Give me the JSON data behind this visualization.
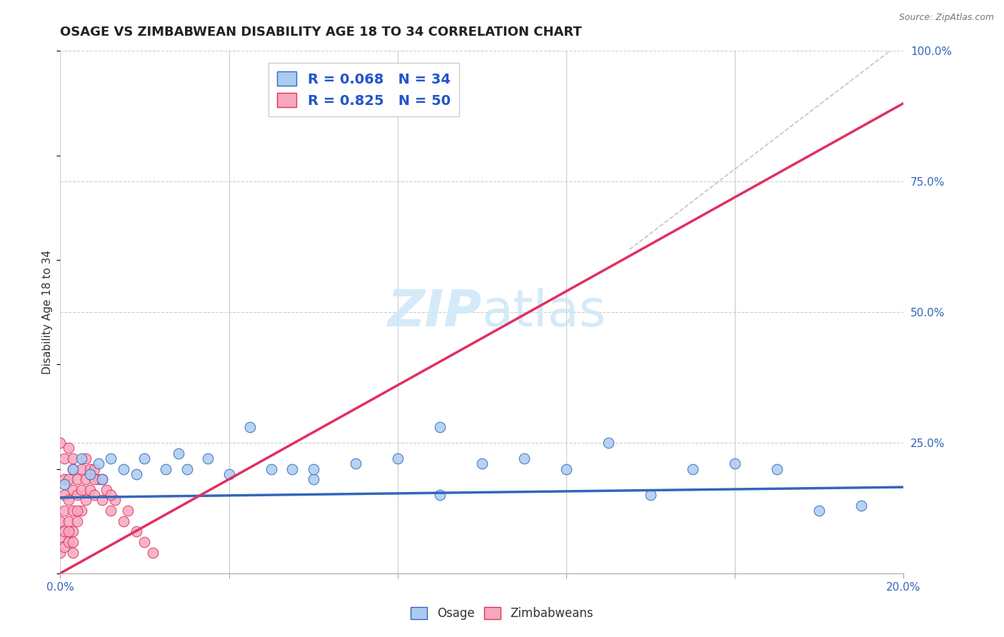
{
  "title": "OSAGE VS ZIMBABWEAN DISABILITY AGE 18 TO 34 CORRELATION CHART",
  "source_text": "Source: ZipAtlas.com",
  "ylabel": "Disability Age 18 to 34",
  "osage_R": 0.068,
  "osage_N": 34,
  "zimbabwean_R": 0.825,
  "zimbabwean_N": 50,
  "xlim": [
    0.0,
    0.2
  ],
  "ylim": [
    0.0,
    1.0
  ],
  "x_ticks": [
    0.0,
    0.04,
    0.08,
    0.12,
    0.16,
    0.2
  ],
  "x_tick_labels": [
    "0.0%",
    "",
    "",
    "",
    "",
    "20.0%"
  ],
  "y_ticks": [
    0.0,
    0.25,
    0.5,
    0.75,
    1.0
  ],
  "y_tick_labels": [
    "",
    "25.0%",
    "50.0%",
    "75.0%",
    "100.0%"
  ],
  "osage_color": "#aaccf0",
  "zimbabwean_color": "#f5a8bc",
  "osage_line_color": "#3366bb",
  "zimbabwean_line_color": "#e03060",
  "background_color": "#ffffff",
  "grid_color": "#cccccc",
  "watermark_color": "#d0e8f8",
  "title_fontsize": 13,
  "axis_label_fontsize": 11,
  "tick_fontsize": 11,
  "legend_fontsize": 14,
  "osage_line_x": [
    0.0,
    0.2
  ],
  "osage_line_y": [
    0.145,
    0.165
  ],
  "zimb_line_x": [
    0.0,
    0.2
  ],
  "zimb_line_y": [
    0.0,
    0.9
  ],
  "osage_x": [
    0.001,
    0.003,
    0.005,
    0.007,
    0.009,
    0.01,
    0.012,
    0.015,
    0.018,
    0.02,
    0.025,
    0.028,
    0.03,
    0.035,
    0.04,
    0.045,
    0.05,
    0.055,
    0.06,
    0.07,
    0.08,
    0.09,
    0.1,
    0.11,
    0.12,
    0.13,
    0.14,
    0.15,
    0.16,
    0.17,
    0.06,
    0.09,
    0.18,
    0.19
  ],
  "osage_y": [
    0.17,
    0.2,
    0.22,
    0.19,
    0.21,
    0.18,
    0.22,
    0.2,
    0.19,
    0.22,
    0.2,
    0.23,
    0.2,
    0.22,
    0.19,
    0.28,
    0.2,
    0.2,
    0.18,
    0.21,
    0.22,
    0.15,
    0.21,
    0.22,
    0.2,
    0.25,
    0.15,
    0.2,
    0.21,
    0.2,
    0.2,
    0.28,
    0.12,
    0.13
  ],
  "zimb_x": [
    0.0,
    0.0,
    0.0,
    0.001,
    0.001,
    0.001,
    0.001,
    0.001,
    0.002,
    0.002,
    0.002,
    0.002,
    0.003,
    0.003,
    0.003,
    0.003,
    0.004,
    0.004,
    0.004,
    0.005,
    0.005,
    0.005,
    0.006,
    0.006,
    0.006,
    0.007,
    0.007,
    0.008,
    0.008,
    0.009,
    0.01,
    0.01,
    0.011,
    0.012,
    0.013,
    0.015,
    0.016,
    0.018,
    0.02,
    0.022,
    0.0,
    0.001,
    0.002,
    0.003,
    0.002,
    0.003,
    0.004,
    0.003,
    0.008,
    0.012
  ],
  "zimb_y": [
    0.04,
    0.07,
    0.1,
    0.05,
    0.08,
    0.12,
    0.15,
    0.18,
    0.06,
    0.1,
    0.14,
    0.18,
    0.08,
    0.12,
    0.16,
    0.2,
    0.1,
    0.15,
    0.18,
    0.12,
    0.16,
    0.2,
    0.14,
    0.18,
    0.22,
    0.16,
    0.2,
    0.15,
    0.2,
    0.18,
    0.14,
    0.18,
    0.16,
    0.12,
    0.14,
    0.1,
    0.12,
    0.08,
    0.06,
    0.04,
    0.25,
    0.22,
    0.24,
    0.22,
    0.08,
    0.06,
    0.12,
    0.04,
    0.18,
    0.15
  ]
}
